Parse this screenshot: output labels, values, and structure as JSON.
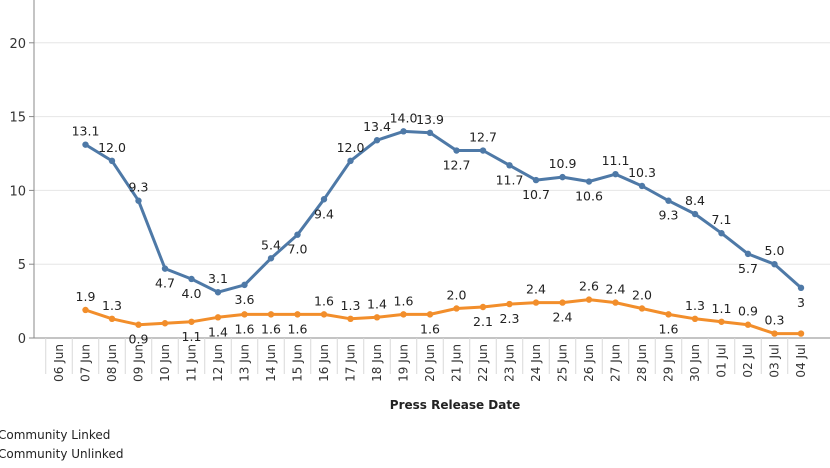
{
  "chart_data": {
    "type": "line",
    "xlabel": "Press Release Date",
    "ylabel": "",
    "ylim": [
      0,
      22
    ],
    "yticks": [
      0,
      5,
      10,
      15,
      20
    ],
    "categories": [
      "06 Jun",
      "07 Jun",
      "08 Jun",
      "09 Jun",
      "10 Jun",
      "11 Jun",
      "12 Jun",
      "13 Jun",
      "14 Jun",
      "15 Jun",
      "16 Jun",
      "17 Jun",
      "18 Jun",
      "19 Jun",
      "20 Jun",
      "21 Jun",
      "22 Jun",
      "23 Jun",
      "24 Jun",
      "25 Jun",
      "26 Jun",
      "27 Jun",
      "28 Jun",
      "29 Jun",
      "30 Jun",
      "01 Jul",
      "02 Jul",
      "03 Jul",
      "04 Jul"
    ],
    "grid": "horizontal",
    "series": [
      {
        "name": "Community Linked",
        "color": "#4e79a7",
        "values": [
          null,
          13.1,
          12.0,
          9.3,
          4.7,
          4.0,
          3.1,
          3.6,
          5.4,
          7.0,
          9.4,
          12.0,
          13.4,
          14.0,
          13.9,
          12.7,
          12.7,
          11.7,
          10.7,
          10.9,
          10.6,
          11.1,
          10.3,
          9.3,
          8.4,
          7.1,
          5.7,
          5.0,
          3.4
        ],
        "labels": [
          null,
          "13.1",
          "12.0",
          "9.3",
          "4.7",
          "4.0",
          "3.1",
          "3.6",
          "5.4",
          "7.0",
          "9.4",
          "12.0",
          "13.4",
          "14.0",
          "13.9",
          "12.7",
          "12.7",
          "11.7",
          "10.7",
          "10.9",
          "10.6",
          "11.1",
          "10.3",
          "9.3",
          "8.4",
          "7.1",
          "5.7",
          "5.0",
          "3"
        ]
      },
      {
        "name": "Community Unlinked",
        "color": "#f28e2b",
        "values": [
          null,
          1.9,
          1.3,
          0.9,
          1.0,
          1.1,
          1.4,
          1.6,
          1.6,
          1.6,
          1.6,
          1.3,
          1.4,
          1.6,
          1.6,
          2.0,
          2.1,
          2.3,
          2.4,
          2.4,
          2.6,
          2.4,
          2.0,
          1.6,
          1.3,
          1.1,
          0.9,
          0.3,
          0.3
        ],
        "labels": [
          null,
          "1.9",
          "1.3",
          "0.9",
          null,
          "1.1",
          "1.4",
          "1.6",
          "1.6",
          "1.6",
          "1.6",
          "1.3",
          "1.4",
          "1.6",
          "1.6",
          "2.0",
          "2.1",
          "2.3",
          "2.4",
          "2.4",
          "2.6",
          "2.4",
          "2.0",
          "1.6",
          "1.3",
          "1.1",
          "0.9",
          "0.3",
          null
        ]
      }
    ],
    "legend": [
      "Community Linked",
      "Community Unlinked"
    ]
  }
}
